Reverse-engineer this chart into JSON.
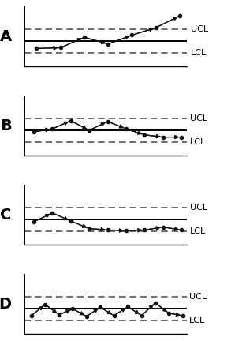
{
  "panels": [
    {
      "label": "A",
      "ucl": 3.0,
      "cl": 2.2,
      "lcl": 1.4,
      "ylim": [
        0.5,
        4.5
      ],
      "points_x": [
        1,
        2,
        3,
        4,
        5,
        6,
        7
      ],
      "points_y": [
        1.7,
        1.75,
        2.45,
        2.0,
        2.6,
        3.1,
        3.9
      ]
    },
    {
      "label": "B",
      "ucl": 3.0,
      "cl": 2.2,
      "lcl": 1.4,
      "ylim": [
        0.5,
        4.5
      ],
      "points_x": [
        1,
        2,
        3,
        4,
        5,
        6,
        7,
        8,
        9
      ],
      "points_y": [
        2.1,
        2.3,
        2.85,
        2.2,
        2.8,
        2.3,
        1.9,
        1.75,
        1.75
      ]
    },
    {
      "label": "C",
      "ucl": 3.0,
      "cl": 2.2,
      "lcl": 1.4,
      "ylim": [
        0.5,
        4.5
      ],
      "points_x": [
        1,
        2,
        3,
        4,
        5,
        6,
        7,
        8,
        9
      ],
      "points_y": [
        2.05,
        2.65,
        2.1,
        1.6,
        1.5,
        1.45,
        1.5,
        1.7,
        1.5
      ]
    },
    {
      "label": "D",
      "ucl": 3.0,
      "cl": 2.2,
      "lcl": 1.4,
      "ylim": [
        0.5,
        4.5
      ],
      "points_x": [
        1,
        2,
        3,
        4,
        5,
        6,
        7,
        8,
        9,
        10,
        11,
        12
      ],
      "points_y": [
        1.75,
        2.5,
        1.8,
        2.2,
        1.7,
        2.3,
        1.75,
        2.35,
        1.75,
        2.6,
        1.9,
        1.75
      ]
    }
  ],
  "line_color": "#111111",
  "bg_color": "#ffffff",
  "label_fontsize": 14,
  "label_fontweight": "bold",
  "annotation_fontsize": 8,
  "annotation_fontweight": "normal",
  "dashed_color": "#555555",
  "solid_color": "#000000"
}
